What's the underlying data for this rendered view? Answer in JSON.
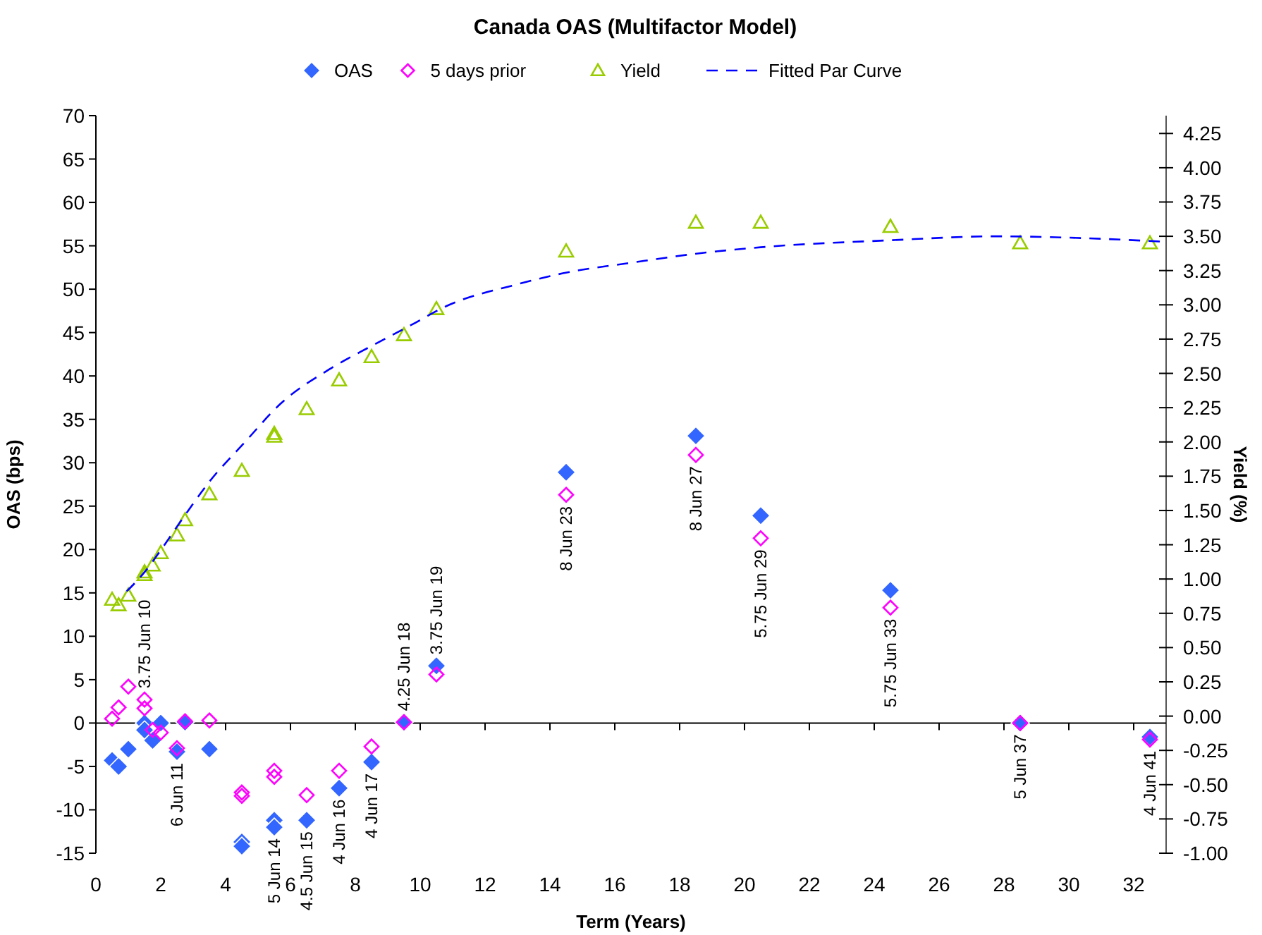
{
  "chart_data": {
    "type": "scatter",
    "title": "Canada OAS (Multifactor Model)",
    "xlabel": "Term (Years)",
    "ylabel": "OAS (bps)",
    "y2label": "Yield (%)",
    "xlim": [
      0,
      33
    ],
    "xticks": [
      0,
      2,
      4,
      6,
      8,
      10,
      12,
      14,
      16,
      18,
      20,
      22,
      24,
      26,
      28,
      30,
      32
    ],
    "ylim": [
      -15,
      70
    ],
    "yticks": [
      -15,
      -10,
      -5,
      0,
      5,
      10,
      15,
      20,
      25,
      30,
      35,
      40,
      45,
      50,
      55,
      60,
      65,
      70
    ],
    "y2lim": [
      -1,
      4.38
    ],
    "y2ticks": [
      {
        "value": -1,
        "label": "-1.00"
      },
      {
        "value": -0.75,
        "label": "-0.75"
      },
      {
        "value": -0.5,
        "label": "-0.50"
      },
      {
        "value": -0.25,
        "label": "-0.25"
      },
      {
        "value": 0,
        "label": "0.00"
      },
      {
        "value": 0.25,
        "label": "0.25"
      },
      {
        "value": 0.5,
        "label": "0.50"
      },
      {
        "value": 0.75,
        "label": "0.75"
      },
      {
        "value": 1,
        "label": "1.00"
      },
      {
        "value": 1.25,
        "label": "1.25"
      },
      {
        "value": 1.5,
        "label": "1.50"
      },
      {
        "value": 1.75,
        "label": "1.75"
      },
      {
        "value": 2,
        "label": "2.00"
      },
      {
        "value": 2.25,
        "label": "2.25"
      },
      {
        "value": 2.5,
        "label": "2.50"
      },
      {
        "value": 2.75,
        "label": "2.75"
      },
      {
        "value": 3,
        "label": "3.00"
      },
      {
        "value": 3.25,
        "label": "3.25"
      },
      {
        "value": 3.5,
        "label": "3.50"
      },
      {
        "value": 3.75,
        "label": "3.75"
      },
      {
        "value": 4,
        "label": "4.00"
      },
      {
        "value": 4.25,
        "label": "4.25"
      }
    ],
    "legend": "top",
    "series": [
      {
        "name": "OAS",
        "marker": "diamond",
        "color": "#3366ff",
        "x": [
          0.5,
          0.7,
          1.0,
          1.5,
          1.5,
          1.75,
          2.0,
          2.5,
          2.75,
          3.5,
          4.5,
          4.5,
          5.5,
          5.5,
          6.5,
          7.5,
          8.5,
          9.5,
          10.5,
          14.5,
          18.5,
          20.5,
          24.5,
          28.5,
          32.5
        ],
        "values": [
          -4.3,
          -5.0,
          -3.0,
          0.0,
          -0.8,
          -2.0,
          0.0,
          -3.3,
          0.1,
          -3.0,
          -13.7,
          -14.2,
          -11.2,
          -12.0,
          -11.2,
          -7.5,
          -4.5,
          0.1,
          6.6,
          28.9,
          33.1,
          23.9,
          15.3,
          0.0,
          -1.6
        ]
      },
      {
        "name": "5 days prior",
        "marker": "diamond",
        "color": "#ff00ff",
        "x": [
          0.5,
          0.7,
          1.0,
          1.5,
          1.5,
          1.75,
          2.0,
          2.5,
          2.75,
          3.5,
          4.5,
          4.5,
          5.5,
          5.5,
          6.5,
          7.5,
          8.5,
          9.5,
          10.5,
          14.5,
          18.5,
          20.5,
          24.5,
          28.5,
          32.5
        ],
        "values": [
          0.5,
          1.8,
          4.2,
          2.7,
          1.7,
          -0.8,
          -1.1,
          -2.9,
          0.2,
          0.3,
          -8.0,
          -8.4,
          -5.5,
          -6.2,
          -8.3,
          -5.5,
          -2.7,
          0.1,
          5.6,
          26.3,
          30.9,
          21.3,
          13.3,
          0.0,
          -1.9
        ]
      },
      {
        "name": "Yield",
        "marker": "triangle",
        "axis": "y2",
        "color": "#99cc00",
        "x": [
          0.5,
          0.7,
          1.0,
          1.5,
          1.5,
          1.75,
          2.0,
          2.5,
          2.75,
          3.5,
          4.5,
          5.5,
          5.5,
          6.5,
          7.5,
          8.5,
          9.5,
          10.5,
          14.5,
          18.5,
          20.5,
          24.5,
          28.5,
          32.5
        ],
        "values": [
          0.85,
          0.81,
          0.88,
          1.03,
          1.05,
          1.1,
          1.19,
          1.32,
          1.43,
          1.62,
          1.79,
          2.04,
          2.06,
          2.24,
          2.45,
          2.62,
          2.78,
          2.97,
          3.39,
          3.6,
          3.6,
          3.57,
          3.45,
          3.45
        ]
      },
      {
        "name": "Fitted Par Curve",
        "type": "line",
        "marker": "none",
        "line_style": "dashed",
        "axis": "y2",
        "color": "#0000ff",
        "x": [
          0.95,
          1.5,
          2,
          2.7,
          3.5,
          4.6,
          5.7,
          7.2,
          8.5,
          9.7,
          10.8,
          13,
          14.4,
          16.6,
          18.4,
          20.5,
          24.4,
          27.8,
          30,
          33
        ],
        "values": [
          0.91,
          1.05,
          1.21,
          1.45,
          1.71,
          2.0,
          2.28,
          2.53,
          2.7,
          2.85,
          2.99,
          3.15,
          3.23,
          3.31,
          3.37,
          3.42,
          3.47,
          3.5,
          3.49,
          3.46
        ]
      }
    ],
    "annotations": [
      {
        "text": "3.75 Jun 10",
        "x": 1.5,
        "y": 0.0
      },
      {
        "text": "6 Jun 11",
        "x": 2.5,
        "y": -3.3
      },
      {
        "text": "5 Jun 14",
        "x": 5.5,
        "y": -12.0
      },
      {
        "text": "4.5 Jun 15",
        "x": 6.5,
        "y": -11.2
      },
      {
        "text": "4 Jun 16",
        "x": 7.5,
        "y": -7.5
      },
      {
        "text": "4 Jun 17",
        "x": 8.5,
        "y": -4.5
      },
      {
        "text": "4.25 Jun 18",
        "x": 9.5,
        "y": 0.1
      },
      {
        "text": "3.75 Jun 19",
        "x": 10.5,
        "y": 6.6
      },
      {
        "text": "8 Jun 23",
        "x": 14.5,
        "y": 28.9
      },
      {
        "text": "8 Jun 27",
        "x": 18.5,
        "y": 33.1
      },
      {
        "text": "5.75 Jun 29",
        "x": 20.5,
        "y": 23.9
      },
      {
        "text": "5.75 Jun 33",
        "x": 24.5,
        "y": 15.3
      },
      {
        "text": "5 Jun 37",
        "x": 28.5,
        "y": 0.0
      },
      {
        "text": "4 Jun 41",
        "x": 32.5,
        "y": -1.6
      }
    ]
  }
}
